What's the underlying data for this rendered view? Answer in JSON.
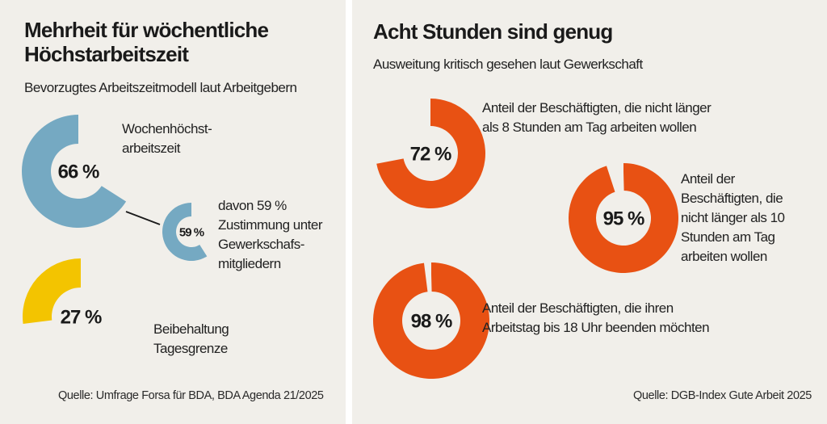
{
  "colors": {
    "background": "#f1efea",
    "divider": "#ffffff",
    "blue": "#75a9c2",
    "yellow": "#f3c400",
    "orange": "#e85113",
    "text": "#1e1e1e"
  },
  "left": {
    "title_line1": "Mehrheit für wöchentliche",
    "title_line2": "Höchstarbeitszeit",
    "subtitle": "Bevorzugtes Arbeitszeitmodell laut Arbeitgebern",
    "source": "Quelle: Umfrage Forsa für BDA, BDA Agenda 21/2025"
  },
  "right": {
    "title": "Acht Stunden sind genug",
    "subtitle": "Ausweitung kritisch gesehen laut Gewerkschaft",
    "source": "Quelle: DGB-Index Gute Arbeit 2025"
  },
  "chart_data": [
    {
      "type": "pie",
      "title": "Mehrheit für wöchentliche Höchstarbeitszeit",
      "subtitle": "Bevorzugtes Arbeitszeitmodell laut Arbeitgebern",
      "series": [
        {
          "name": "Wochenhöchstarbeitszeit",
          "value": 66,
          "value_label": "66 %",
          "label_lines": [
            "Wochenhöchst-",
            "arbeitszeit"
          ],
          "color": "#75a9c2"
        },
        {
          "name": "davon Zustimmung unter Gewerkschaftsmitgliedern",
          "value": 59,
          "value_label": "59 %",
          "label_lines": [
            "davon 59 %",
            "Zustimmung unter",
            "Gewerkschafs-",
            "mitgliedern"
          ],
          "color": "#75a9c2",
          "parent": "Wochenhöchstarbeitszeit"
        },
        {
          "name": "Beibehaltung Tagesgrenze",
          "value": 27,
          "value_label": "27 %",
          "label_lines": [
            "Beibehaltung",
            "Tagesgrenze"
          ],
          "color": "#f3c400"
        }
      ],
      "source": "Quelle: Umfrage Forsa für BDA, BDA Agenda 21/2025"
    },
    {
      "type": "pie",
      "title": "Acht Stunden sind genug",
      "subtitle": "Ausweitung kritisch gesehen laut Gewerkschaft",
      "series": [
        {
          "name": "nicht länger als 8 Stunden am Tag arbeiten",
          "value": 72,
          "value_label": "72 %",
          "label_lines": [
            "Anteil der Beschäftigten, die nicht länger",
            "als 8 Stunden am Tag arbeiten wollen"
          ],
          "color": "#e85113"
        },
        {
          "name": "nicht länger als 10 Stunden am Tag arbeiten",
          "value": 95,
          "value_label": "95 %",
          "label_lines": [
            "Anteil der",
            "Beschäftigten, die",
            "nicht länger als 10",
            "Stunden am Tag",
            "arbeiten wollen"
          ],
          "color": "#e85113"
        },
        {
          "name": "Arbeitstag bis 18 Uhr beenden",
          "value": 98,
          "value_label": "98 %",
          "label_lines": [
            "Anteil der Beschäftigten, die ihren",
            "Arbeitstag bis 18 Uhr beenden möchten"
          ],
          "color": "#e85113"
        }
      ],
      "source": "Quelle: DGB-Index Gute Arbeit 2025"
    }
  ]
}
